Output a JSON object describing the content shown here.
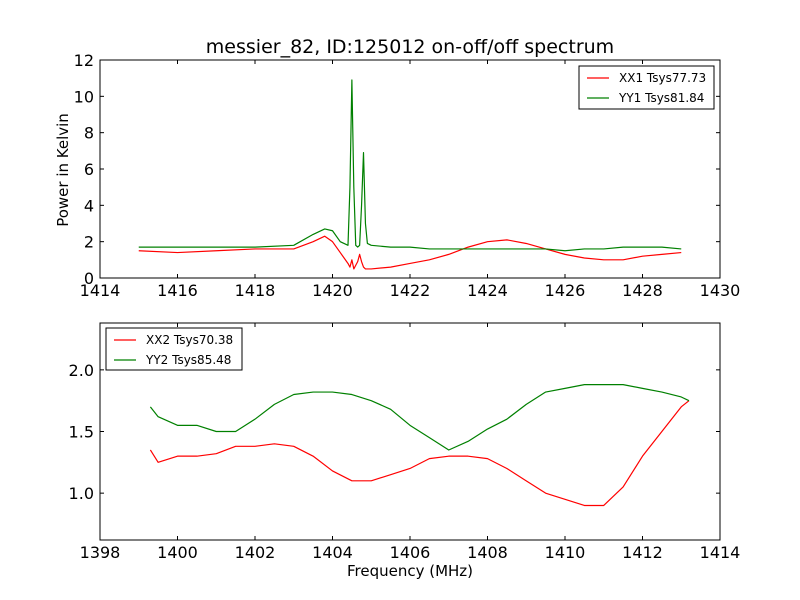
{
  "colors": {
    "red": "#ff0000",
    "green": "#008000"
  },
  "chart_data": [
    {
      "type": "line",
      "title": "messier_82, ID:125012 on-off/off spectrum",
      "xlabel": "",
      "ylabel": "Power in Kelvin",
      "xlim": [
        1414,
        1430
      ],
      "ylim": [
        0,
        12
      ],
      "xticks": [
        1414,
        1416,
        1418,
        1420,
        1422,
        1424,
        1426,
        1428,
        1430
      ],
      "yticks": [
        0,
        2,
        4,
        6,
        8,
        10,
        12
      ],
      "xtick_labels": [
        "1414",
        "1416",
        "1418",
        "1420",
        "1422",
        "1424",
        "1426",
        "1428",
        "1430"
      ],
      "ytick_labels": [
        "0",
        "2",
        "4",
        "6",
        "8",
        "10",
        "12"
      ],
      "legend_position": "top-right",
      "series": [
        {
          "name": "XX1 Tsys77.73",
          "color": "#ff0000",
          "x": [
            1415,
            1416,
            1417,
            1418,
            1419,
            1419.5,
            1419.8,
            1420.0,
            1420.2,
            1420.4,
            1420.45,
            1420.5,
            1420.55,
            1420.6,
            1420.65,
            1420.7,
            1420.75,
            1420.8,
            1420.85,
            1420.9,
            1421.0,
            1421.5,
            1422,
            1422.5,
            1423,
            1423.5,
            1424,
            1424.5,
            1425,
            1425.5,
            1426,
            1426.5,
            1427,
            1427.5,
            1428,
            1428.5,
            1429
          ],
          "y": [
            1.5,
            1.4,
            1.5,
            1.6,
            1.6,
            2.0,
            2.3,
            2.0,
            1.4,
            0.8,
            0.6,
            1.0,
            0.5,
            0.7,
            0.9,
            1.3,
            0.9,
            0.6,
            0.5,
            0.5,
            0.5,
            0.6,
            0.8,
            1.0,
            1.3,
            1.7,
            2.0,
            2.1,
            1.9,
            1.6,
            1.3,
            1.1,
            1.0,
            1.0,
            1.2,
            1.3,
            1.4
          ]
        },
        {
          "name": "YY1 Tsys81.84",
          "color": "#008000",
          "x": [
            1415,
            1416,
            1417,
            1418,
            1419,
            1419.5,
            1419.8,
            1420.0,
            1420.2,
            1420.4,
            1420.45,
            1420.5,
            1420.55,
            1420.6,
            1420.65,
            1420.7,
            1420.75,
            1420.8,
            1420.85,
            1420.9,
            1421.0,
            1421.5,
            1422,
            1422.5,
            1423,
            1423.5,
            1424,
            1424.5,
            1425,
            1425.5,
            1426,
            1426.5,
            1427,
            1427.5,
            1428,
            1428.5,
            1429
          ],
          "y": [
            1.7,
            1.7,
            1.7,
            1.7,
            1.8,
            2.4,
            2.7,
            2.6,
            2.0,
            1.8,
            5.0,
            10.9,
            5.0,
            1.8,
            1.7,
            1.8,
            4.0,
            6.9,
            3.0,
            1.9,
            1.8,
            1.7,
            1.7,
            1.6,
            1.6,
            1.6,
            1.6,
            1.6,
            1.6,
            1.6,
            1.5,
            1.6,
            1.6,
            1.7,
            1.7,
            1.7,
            1.6
          ]
        }
      ]
    },
    {
      "type": "line",
      "title": "",
      "xlabel": "Frequency (MHz)",
      "ylabel": "",
      "xlim": [
        1398,
        1414
      ],
      "ylim": [
        0.62,
        2.38
      ],
      "xticks": [
        1398,
        1400,
        1402,
        1404,
        1406,
        1408,
        1410,
        1412,
        1414
      ],
      "yticks": [
        1.0,
        1.5,
        2.0
      ],
      "xtick_labels": [
        "1398",
        "1400",
        "1402",
        "1404",
        "1406",
        "1408",
        "1410",
        "1412",
        "1414"
      ],
      "ytick_labels": [
        "1.0",
        "1.5",
        "2.0"
      ],
      "legend_position": "top-left",
      "series": [
        {
          "name": "XX2 Tsys70.38",
          "color": "#ff0000",
          "x": [
            1399.3,
            1399.5,
            1400.0,
            1400.5,
            1401.0,
            1401.5,
            1402.0,
            1402.5,
            1403.0,
            1403.5,
            1404.0,
            1404.5,
            1405.0,
            1405.5,
            1406.0,
            1406.5,
            1407.0,
            1407.5,
            1408.0,
            1408.5,
            1409.0,
            1409.5,
            1410.0,
            1410.5,
            1411.0,
            1411.5,
            1412.0,
            1412.5,
            1413.0,
            1413.2
          ],
          "y": [
            1.35,
            1.25,
            1.3,
            1.3,
            1.32,
            1.38,
            1.38,
            1.4,
            1.38,
            1.3,
            1.18,
            1.1,
            1.1,
            1.15,
            1.2,
            1.28,
            1.3,
            1.3,
            1.28,
            1.2,
            1.1,
            1.0,
            0.95,
            0.9,
            0.9,
            1.05,
            1.3,
            1.5,
            1.7,
            1.75
          ]
        },
        {
          "name": "YY2 Tsys85.48",
          "color": "#008000",
          "x": [
            1399.3,
            1399.5,
            1400.0,
            1400.5,
            1401.0,
            1401.5,
            1402.0,
            1402.5,
            1403.0,
            1403.5,
            1404.0,
            1404.5,
            1405.0,
            1405.5,
            1406.0,
            1406.5,
            1407.0,
            1407.5,
            1408.0,
            1408.5,
            1409.0,
            1409.5,
            1410.0,
            1410.5,
            1411.0,
            1411.5,
            1412.0,
            1412.5,
            1413.0,
            1413.2
          ],
          "y": [
            1.7,
            1.62,
            1.55,
            1.55,
            1.5,
            1.5,
            1.6,
            1.72,
            1.8,
            1.82,
            1.82,
            1.8,
            1.75,
            1.68,
            1.55,
            1.45,
            1.35,
            1.42,
            1.52,
            1.6,
            1.72,
            1.82,
            1.85,
            1.88,
            1.88,
            1.88,
            1.85,
            1.82,
            1.78,
            1.75
          ]
        }
      ]
    }
  ]
}
